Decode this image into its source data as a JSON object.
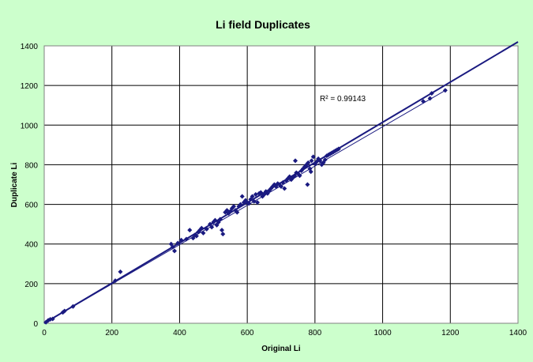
{
  "chart_data": {
    "type": "scatter",
    "title": "Li field Duplicates",
    "xlabel": "Original Li",
    "ylabel": "Duplicate Li",
    "xlim": [
      0,
      1400
    ],
    "ylim": [
      0,
      1400
    ],
    "xticks": [
      "0",
      "200",
      "400",
      "600",
      "800",
      "1000",
      "1200",
      "1400"
    ],
    "yticks": [
      "0",
      "200",
      "400",
      "600",
      "800",
      "1000",
      "1200",
      "1400"
    ],
    "grid": true,
    "annotation": "R² = 0.99143",
    "colors": {
      "background": "#ccffcc",
      "plot_area": "#ffffff",
      "points": "#1a1a80",
      "lines": "#1a1a80"
    },
    "series": [
      {
        "values": [
          [
            5,
            5
          ],
          [
            12,
            15
          ],
          [
            18,
            20
          ],
          [
            25,
            22
          ],
          [
            55,
            55
          ],
          [
            60,
            62
          ],
          [
            85,
            85
          ],
          [
            210,
            215
          ],
          [
            225,
            260
          ],
          [
            375,
            400
          ],
          [
            380,
            385
          ],
          [
            385,
            365
          ],
          [
            395,
            405
          ],
          [
            405,
            420
          ],
          [
            420,
            425
          ],
          [
            430,
            470
          ],
          [
            440,
            430
          ],
          [
            445,
            445
          ],
          [
            450,
            440
          ],
          [
            455,
            460
          ],
          [
            460,
            470
          ],
          [
            465,
            480
          ],
          [
            470,
            455
          ],
          [
            480,
            475
          ],
          [
            490,
            500
          ],
          [
            495,
            485
          ],
          [
            500,
            510
          ],
          [
            505,
            520
          ],
          [
            510,
            495
          ],
          [
            515,
            510
          ],
          [
            520,
            525
          ],
          [
            525,
            470
          ],
          [
            528,
            450
          ],
          [
            535,
            560
          ],
          [
            540,
            570
          ],
          [
            545,
            555
          ],
          [
            550,
            565
          ],
          [
            555,
            580
          ],
          [
            560,
            590
          ],
          [
            565,
            570
          ],
          [
            570,
            560
          ],
          [
            575,
            590
          ],
          [
            580,
            600
          ],
          [
            585,
            640
          ],
          [
            590,
            610
          ],
          [
            595,
            620
          ],
          [
            600,
            610
          ],
          [
            605,
            605
          ],
          [
            610,
            625
          ],
          [
            615,
            640
          ],
          [
            620,
            615
          ],
          [
            625,
            650
          ],
          [
            630,
            610
          ],
          [
            635,
            655
          ],
          [
            640,
            660
          ],
          [
            645,
            640
          ],
          [
            650,
            650
          ],
          [
            655,
            665
          ],
          [
            660,
            655
          ],
          [
            665,
            670
          ],
          [
            670,
            680
          ],
          [
            675,
            690
          ],
          [
            680,
            700
          ],
          [
            685,
            690
          ],
          [
            690,
            705
          ],
          [
            695,
            700
          ],
          [
            700,
            690
          ],
          [
            705,
            710
          ],
          [
            710,
            680
          ],
          [
            715,
            720
          ],
          [
            720,
            730
          ],
          [
            725,
            740
          ],
          [
            730,
            725
          ],
          [
            735,
            735
          ],
          [
            740,
            745
          ],
          [
            742,
            820
          ],
          [
            745,
            760
          ],
          [
            750,
            755
          ],
          [
            755,
            745
          ],
          [
            760,
            770
          ],
          [
            765,
            780
          ],
          [
            770,
            790
          ],
          [
            775,
            800
          ],
          [
            778,
            700
          ],
          [
            780,
            810
          ],
          [
            785,
            780
          ],
          [
            788,
            765
          ],
          [
            790,
            820
          ],
          [
            795,
            840
          ],
          [
            800,
            805
          ],
          [
            805,
            815
          ],
          [
            810,
            830
          ],
          [
            815,
            820
          ],
          [
            820,
            800
          ],
          [
            825,
            810
          ],
          [
            830,
            825
          ],
          [
            835,
            845
          ],
          [
            840,
            850
          ],
          [
            845,
            855
          ],
          [
            850,
            860
          ],
          [
            855,
            865
          ],
          [
            860,
            870
          ],
          [
            865,
            875
          ],
          [
            870,
            880
          ],
          [
            1120,
            1120
          ],
          [
            1140,
            1135
          ],
          [
            1145,
            1160
          ],
          [
            1185,
            1175
          ]
        ]
      }
    ],
    "lines": [
      {
        "from": [
          0,
          0
        ],
        "to": [
          1400,
          1420
        ]
      },
      {
        "from": [
          0,
          0
        ],
        "to": [
          1190,
          1180
        ]
      }
    ]
  }
}
